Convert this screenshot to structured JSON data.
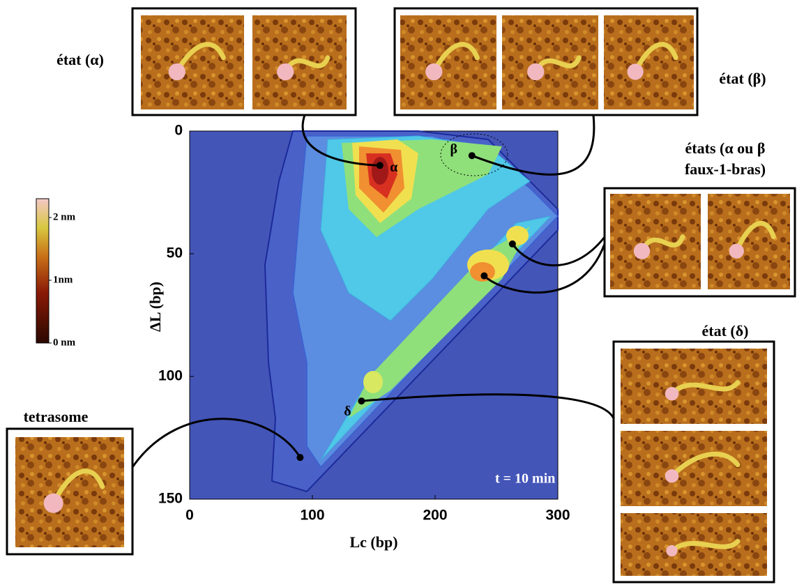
{
  "chart_data": {
    "type": "contour",
    "x_label": "Lc (bp)",
    "y_label": "ΔL (bp)",
    "xlim": [
      0,
      300
    ],
    "ylim": [
      150,
      0
    ],
    "xticks": [
      0,
      100,
      200,
      300
    ],
    "yticks": [
      0,
      50,
      100,
      150
    ],
    "annotation": "t = 10 min",
    "points": {
      "x": [
        155,
        230,
        263,
        240,
        140,
        90
      ],
      "y": [
        14,
        10,
        46,
        59,
        110,
        133
      ],
      "labels": [
        "α",
        "β",
        null,
        null,
        "δ",
        null
      ]
    },
    "clim": [
      0,
      2.3
    ],
    "cticks": [
      {
        "value": 2,
        "label": "2 nm"
      },
      {
        "value": 1,
        "label": "1nm"
      },
      {
        "value": 0,
        "label": "0 nm"
      }
    ]
  },
  "insets": [
    {
      "label": "état (α)"
    },
    {
      "label": "état (β)"
    },
    {
      "label": [
        "états (α ou β",
        "faux-1-bras)"
      ]
    },
    {
      "label": "état (δ)"
    },
    {
      "label": "tetrasome"
    }
  ]
}
